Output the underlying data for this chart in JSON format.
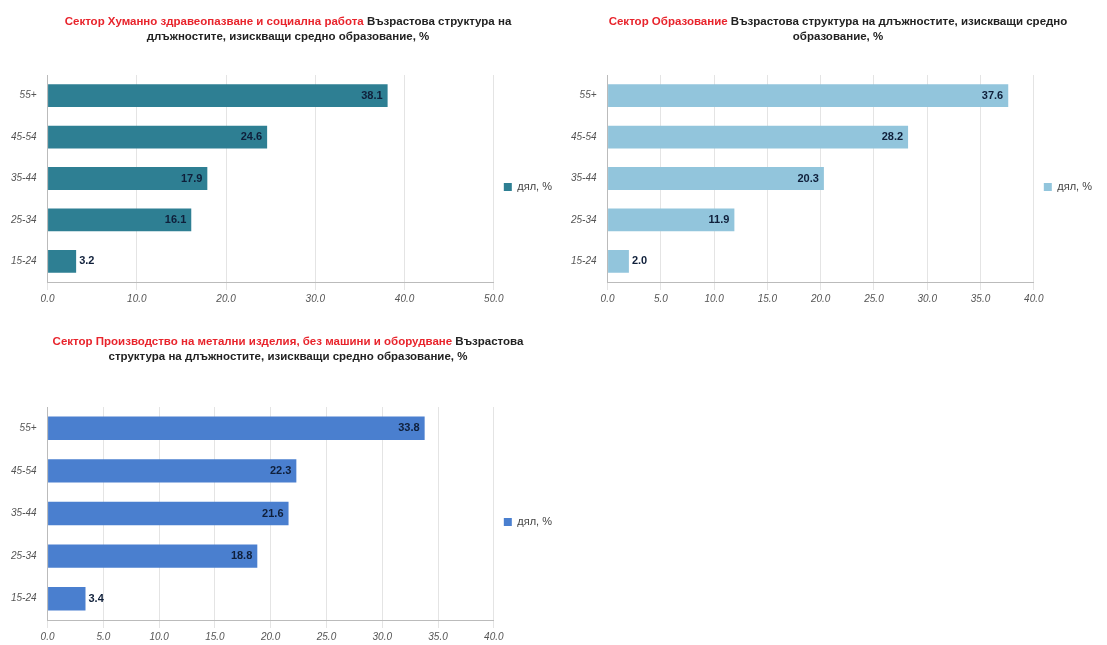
{
  "chart_data": [
    {
      "type": "bar",
      "orientation": "horizontal",
      "title": "Сектор Хуманно здравеопазване и социална работа",
      "subtitle": "Възрастова структура на длъжностите, изискващи средно образование, %",
      "categories": [
        "55+",
        "45-54",
        "35-44",
        "25-34",
        "15-24"
      ],
      "series": [
        {
          "name": "дял, %",
          "color": "#2e7f93",
          "values": [
            38.1,
            24.6,
            17.9,
            16.1,
            3.2
          ],
          "value_labels": [
            "38.1",
            "24.6",
            "17.9",
            "16.1",
            "3.2"
          ]
        }
      ],
      "xlim": [
        0,
        50
      ],
      "xticks": [
        {
          "value": 0,
          "label": "0.0"
        },
        {
          "value": 10,
          "label": "10.0"
        },
        {
          "value": 20,
          "label": "20.0"
        },
        {
          "value": 30,
          "label": "30.0"
        },
        {
          "value": 40,
          "label": "40.0"
        },
        {
          "value": 50,
          "label": "50.0"
        }
      ],
      "grid": "x",
      "legend": "right"
    },
    {
      "type": "bar",
      "orientation": "horizontal",
      "title": "Сектор Образование",
      "subtitle": "Възрастова структура на длъжностите, изискващи средно образование, %",
      "categories": [
        "55+",
        "45-54",
        "35-44",
        "25-34",
        "15-24"
      ],
      "series": [
        {
          "name": "дял, %",
          "color": "#92c5dc",
          "values": [
            37.6,
            28.2,
            20.3,
            11.9,
            2.0
          ],
          "value_labels": [
            "37.6",
            "28.2",
            "20.3",
            "11.9",
            "2.0"
          ]
        }
      ],
      "xlim": [
        0,
        40
      ],
      "xticks": [
        {
          "value": 0,
          "label": "0.0"
        },
        {
          "value": 5,
          "label": "5.0"
        },
        {
          "value": 10,
          "label": "10.0"
        },
        {
          "value": 15,
          "label": "15.0"
        },
        {
          "value": 20,
          "label": "20.0"
        },
        {
          "value": 25,
          "label": "25.0"
        },
        {
          "value": 30,
          "label": "30.0"
        },
        {
          "value": 35,
          "label": "35.0"
        },
        {
          "value": 40,
          "label": "40.0"
        }
      ],
      "grid": "x",
      "legend": "right"
    },
    {
      "type": "bar",
      "orientation": "horizontal",
      "title": "Сектор Производство на метални изделия, без машини и оборудване",
      "subtitle": "Възрастова структура на длъжностите, изискващи средно образование, %",
      "categories": [
        "55+",
        "45-54",
        "35-44",
        "25-34",
        "15-24"
      ],
      "series": [
        {
          "name": "дял, %",
          "color": "#4a7fcf",
          "values": [
            33.8,
            22.3,
            21.6,
            18.8,
            3.4
          ],
          "value_labels": [
            "33.8",
            "22.3",
            "21.6",
            "18.8",
            "3.4"
          ]
        }
      ],
      "xlim": [
        0,
        40
      ],
      "xticks": [
        {
          "value": 0,
          "label": "0.0"
        },
        {
          "value": 5,
          "label": "5.0"
        },
        {
          "value": 10,
          "label": "10.0"
        },
        {
          "value": 15,
          "label": "15.0"
        },
        {
          "value": 20,
          "label": "20.0"
        },
        {
          "value": 25,
          "label": "25.0"
        },
        {
          "value": 30,
          "label": "30.0"
        },
        {
          "value": 35,
          "label": "35.0"
        },
        {
          "value": 40,
          "label": "40.0"
        }
      ],
      "grid": "x",
      "legend": "right"
    }
  ]
}
